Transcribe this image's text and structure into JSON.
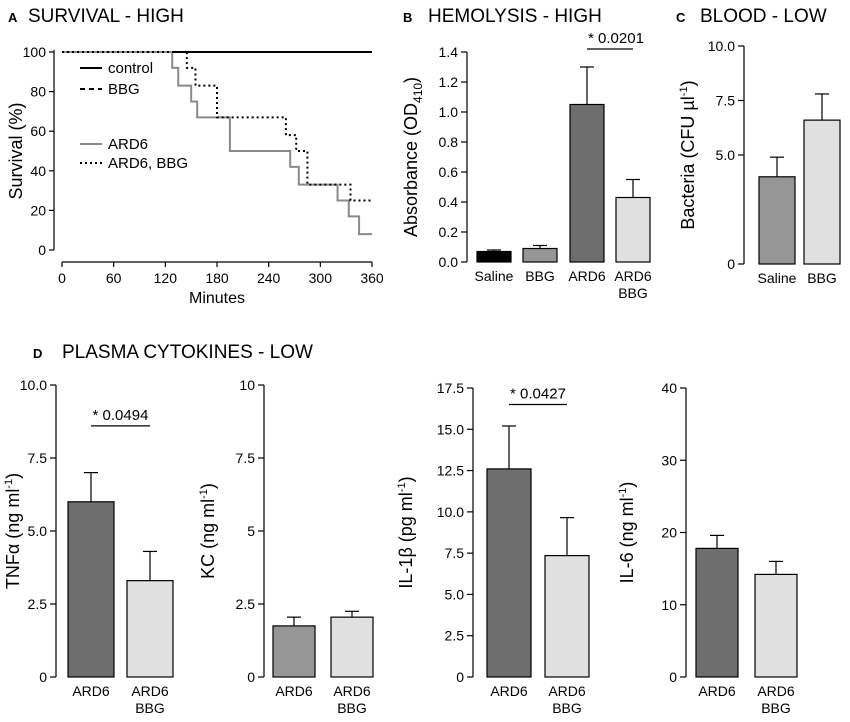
{
  "colors": {
    "black": "#000000",
    "dark_gray": "#6e6e6e",
    "mid_gray": "#969696",
    "light_gray": "#e0e0e0",
    "survival_gray": "#8a8a8a"
  },
  "chart_data": [
    {
      "id": "A",
      "letter": "A",
      "title": "SURVIVAL - HIGH",
      "type": "line",
      "xlabel": "Minutes",
      "ylabel": "Survival (%)",
      "xlim": [
        0,
        360
      ],
      "ylim": [
        0,
        100
      ],
      "xticks": [
        "0",
        "60",
        "120",
        "180",
        "240",
        "300",
        "360"
      ],
      "xtick_values": [
        0,
        60,
        120,
        180,
        240,
        300,
        360
      ],
      "yticks": [
        "0",
        "20",
        "40",
        "60",
        "80",
        "100"
      ],
      "ytick_values": [
        0,
        20,
        40,
        60,
        80,
        100
      ],
      "series": [
        {
          "name": "control",
          "style": "solid-black",
          "x": [
            0,
            360
          ],
          "y": [
            100,
            100
          ]
        },
        {
          "name": "BBG",
          "style": "dashed-black",
          "x": [
            0,
            360
          ],
          "y": [
            100,
            100
          ]
        },
        {
          "name": "ARD6",
          "style": "solid-gray",
          "x": [
            0,
            128,
            128,
            135,
            135,
            150,
            150,
            157,
            157,
            195,
            195,
            265,
            265,
            275,
            275,
            320,
            320,
            333,
            333,
            345,
            345,
            360
          ],
          "y": [
            100,
            100,
            92,
            92,
            83,
            83,
            75,
            75,
            67,
            67,
            50,
            50,
            42,
            42,
            33,
            33,
            25,
            25,
            17,
            17,
            8,
            8
          ]
        },
        {
          "name": "ARD6, BBG",
          "style": "dotted-black",
          "x": [
            0,
            145,
            145,
            155,
            155,
            180,
            180,
            225,
            225,
            260,
            260,
            272,
            272,
            285,
            285,
            335,
            335,
            360
          ],
          "y": [
            100,
            100,
            92,
            92,
            83,
            83,
            67,
            67,
            67,
            67,
            58,
            58,
            50,
            50,
            33,
            33,
            25,
            25
          ]
        }
      ]
    },
    {
      "id": "B",
      "letter": "B",
      "title": "HEMOLYSIS - HIGH",
      "type": "bar",
      "ylabel": "Absorbance (OD",
      "ylabel_sub": "410",
      "ylabel_end": ")",
      "ylim": [
        0,
        1.4
      ],
      "yticks": [
        "0.0",
        "0.2",
        "0.4",
        "0.6",
        "0.8",
        "1.0",
        "1.2",
        "1.4"
      ],
      "ytick_values": [
        0,
        0.2,
        0.4,
        0.6,
        0.8,
        1.0,
        1.2,
        1.4
      ],
      "categories": [
        [
          "Saline"
        ],
        [
          "BBG"
        ],
        [
          "ARD6"
        ],
        [
          "ARD6",
          "BBG"
        ]
      ],
      "values": [
        0.07,
        0.09,
        1.05,
        0.43
      ],
      "errors": [
        0.01,
        0.02,
        0.25,
        0.12
      ],
      "fills": [
        "black",
        "mid_gray",
        "dark_gray",
        "light_gray"
      ],
      "significance": {
        "from": 2,
        "to": 3,
        "label": "* 0.0201",
        "at": 1.42
      }
    },
    {
      "id": "C",
      "letter": "C",
      "title": "BLOOD - LOW",
      "type": "bar",
      "ylabel": "Bacteria (CFU µl",
      "ylabel_sup": "-1",
      "ylabel_end": ")",
      "ylim": [
        0,
        10
      ],
      "yticks": [
        "0",
        "5.0",
        "7.5",
        "10.0"
      ],
      "ytick_values": [
        0,
        5.0,
        7.5,
        10.0
      ],
      "categories": [
        [
          "Saline"
        ],
        [
          "BBG"
        ]
      ],
      "values": [
        4.0,
        6.6
      ],
      "errors": [
        0.9,
        1.2
      ],
      "fills": [
        "mid_gray",
        "light_gray"
      ]
    },
    {
      "id": "D1",
      "letter": "D",
      "title": "PLASMA CYTOKINES - LOW",
      "type": "bar",
      "ylabel": "TNFα (ng ml",
      "ylabel_sup": "-1",
      "ylabel_end": ")",
      "ylim": [
        0,
        10
      ],
      "yticks": [
        "0",
        "2.5",
        "5.0",
        "7.5",
        "10.0"
      ],
      "ytick_values": [
        0,
        2.5,
        5.0,
        7.5,
        10.0
      ],
      "categories": [
        [
          "ARD6"
        ],
        [
          "ARD6",
          "BBG"
        ]
      ],
      "values": [
        6.0,
        3.3
      ],
      "errors": [
        1.0,
        1.0
      ],
      "fills": [
        "dark_gray",
        "light_gray"
      ],
      "significance": {
        "from": 0,
        "to": 1,
        "label": "* 0.0494",
        "at": 8.6
      }
    },
    {
      "id": "D2",
      "type": "bar",
      "ylabel": "KC (ng ml",
      "ylabel_sup": "-1",
      "ylabel_end": ")",
      "ylim": [
        0,
        10
      ],
      "yticks": [
        "0",
        "2.5",
        "5",
        "7.5",
        "10"
      ],
      "ytick_values": [
        0,
        2.5,
        5,
        7.5,
        10
      ],
      "categories": [
        [
          "ARD6"
        ],
        [
          "ARD6",
          "BBG"
        ]
      ],
      "values": [
        1.75,
        2.05
      ],
      "errors": [
        0.3,
        0.2
      ],
      "fills": [
        "mid_gray",
        "light_gray"
      ]
    },
    {
      "id": "D3",
      "type": "bar",
      "ylabel": "IL-1β (pg ml",
      "ylabel_sup": "-1",
      "ylabel_end": ")",
      "ylim": [
        0,
        17.5
      ],
      "yticks": [
        "0",
        "2.5",
        "5.0",
        "7.5",
        "10.0",
        "12.5",
        "15.0",
        "17.5"
      ],
      "ytick_values": [
        0,
        2.5,
        5.0,
        7.5,
        10.0,
        12.5,
        15.0,
        17.5
      ],
      "categories": [
        [
          "ARD6"
        ],
        [
          "ARD6",
          "BBG"
        ]
      ],
      "values": [
        12.6,
        7.35
      ],
      "errors": [
        2.6,
        2.3
      ],
      "fills": [
        "dark_gray",
        "light_gray"
      ],
      "significance": {
        "from": 0,
        "to": 1,
        "label": "* 0.0427",
        "at": 16.5
      }
    },
    {
      "id": "D4",
      "type": "bar",
      "ylabel": "IL-6 (ng ml",
      "ylabel_sup": "-1",
      "ylabel_end": ")",
      "ylim": [
        0,
        40
      ],
      "yticks": [
        "0",
        "10",
        "20",
        "30",
        "40"
      ],
      "ytick_values": [
        0,
        10,
        20,
        30,
        40
      ],
      "categories": [
        [
          "ARD6"
        ],
        [
          "ARD6",
          "BBG"
        ]
      ],
      "values": [
        17.8,
        14.2
      ],
      "errors": [
        1.8,
        1.8
      ],
      "fills": [
        "dark_gray",
        "light_gray"
      ]
    }
  ]
}
